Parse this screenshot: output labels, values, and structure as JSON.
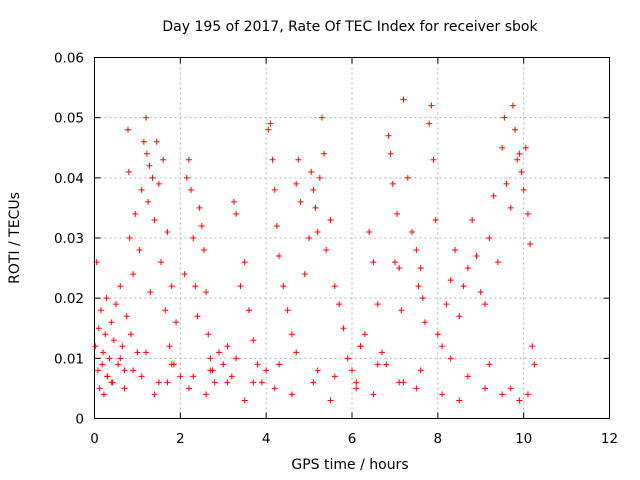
{
  "chart_data": {
    "type": "scatter",
    "title": "Day 195 of 2017, Rate Of TEC Index for receiver sbok",
    "xlabel": "GPS time / hours",
    "ylabel": "ROTI / TECUs",
    "xlim": [
      0,
      12
    ],
    "ylim": [
      0,
      0.06
    ],
    "x_ticks": [
      "0",
      "2",
      "4",
      "6",
      "8",
      "10",
      "12"
    ],
    "y_ticks": [
      "0",
      "0.01",
      "0.02",
      "0.03",
      "0.04",
      "0.05",
      "0.06"
    ],
    "grid": true,
    "marker": "+",
    "color": "#ff0000",
    "series": [
      {
        "x": [
          0.02,
          0.05,
          0.08,
          0.1,
          0.12,
          0.15,
          0.18,
          0.2,
          0.22,
          0.25,
          0.28,
          0.3,
          0.35,
          0.4,
          0.42,
          0.45,
          0.5,
          0.55,
          0.6,
          0.65,
          0.7,
          0.75,
          0.78,
          0.8,
          0.82,
          0.85,
          0.9,
          0.95,
          1.0,
          1.05,
          1.1,
          1.15,
          1.2,
          1.22,
          1.25,
          1.28,
          1.3,
          1.35,
          1.4,
          1.45,
          1.5,
          1.55,
          1.6,
          1.65,
          1.7,
          1.75,
          1.8,
          1.85,
          1.9,
          2.0,
          2.1,
          2.15,
          2.2,
          2.25,
          2.3,
          2.35,
          2.4,
          2.45,
          2.5,
          2.55,
          2.6,
          2.65,
          2.7,
          2.75,
          2.8,
          2.9,
          3.0,
          3.1,
          3.2,
          3.25,
          3.3,
          3.4,
          3.5,
          3.6,
          3.7,
          3.8,
          3.9,
          4.0,
          4.05,
          4.1,
          4.15,
          4.2,
          4.25,
          4.3,
          4.4,
          4.5,
          4.6,
          4.7,
          4.75,
          4.8,
          4.9,
          5.0,
          5.05,
          5.1,
          5.15,
          5.2,
          5.25,
          5.3,
          5.35,
          5.4,
          5.5,
          5.6,
          5.7,
          5.8,
          5.9,
          6.0,
          6.1,
          6.2,
          6.3,
          6.4,
          6.5,
          6.6,
          6.7,
          6.8,
          6.85,
          6.9,
          6.95,
          7.0,
          7.05,
          7.1,
          7.15,
          7.2,
          7.3,
          7.4,
          7.5,
          7.55,
          7.6,
          7.65,
          7.7,
          7.8,
          7.85,
          7.9,
          7.95,
          8.0,
          8.1,
          8.2,
          8.3,
          8.4,
          8.5,
          8.6,
          8.7,
          8.8,
          8.9,
          9.0,
          9.1,
          9.2,
          9.3,
          9.4,
          9.5,
          9.55,
          9.6,
          9.7,
          9.75,
          9.8,
          9.85,
          9.9,
          9.95,
          10.0,
          10.05,
          10.1,
          10.15,
          10.2,
          10.25,
          0.3,
          0.6,
          0.9,
          1.2,
          1.5,
          1.8,
          2.3,
          2.7,
          3.3,
          3.7,
          4.3,
          4.7,
          5.2,
          5.6,
          6.2,
          6.6,
          7.2,
          7.6,
          8.3,
          8.7,
          9.2,
          9.7,
          10.1,
          0.4,
          0.7,
          1.1,
          1.4,
          1.7,
          2.2,
          2.6,
          3.1,
          3.5,
          4.2,
          4.6,
          5.1,
          5.5,
          6.1,
          6.5,
          7.1,
          7.5,
          8.1,
          8.5,
          9.1,
          9.5,
          9.9
        ],
        "y": [
          0.012,
          0.026,
          0.008,
          0.015,
          0.005,
          0.018,
          0.009,
          0.011,
          0.004,
          0.014,
          0.02,
          0.007,
          0.01,
          0.016,
          0.006,
          0.013,
          0.019,
          0.009,
          0.022,
          0.012,
          0.008,
          0.017,
          0.048,
          0.041,
          0.03,
          0.014,
          0.024,
          0.034,
          0.011,
          0.028,
          0.038,
          0.046,
          0.05,
          0.044,
          0.036,
          0.042,
          0.021,
          0.04,
          0.033,
          0.046,
          0.039,
          0.026,
          0.043,
          0.018,
          0.031,
          0.012,
          0.022,
          0.009,
          0.016,
          0.007,
          0.024,
          0.04,
          0.043,
          0.038,
          0.03,
          0.022,
          0.017,
          0.035,
          0.032,
          0.028,
          0.021,
          0.014,
          0.01,
          0.008,
          0.006,
          0.011,
          0.009,
          0.012,
          0.007,
          0.036,
          0.034,
          0.022,
          0.026,
          0.018,
          0.013,
          0.009,
          0.006,
          0.008,
          0.048,
          0.049,
          0.043,
          0.038,
          0.032,
          0.027,
          0.022,
          0.018,
          0.014,
          0.039,
          0.043,
          0.036,
          0.024,
          0.03,
          0.041,
          0.038,
          0.035,
          0.031,
          0.04,
          0.05,
          0.044,
          0.028,
          0.033,
          0.022,
          0.019,
          0.015,
          0.01,
          0.008,
          0.006,
          0.012,
          0.014,
          0.031,
          0.026,
          0.019,
          0.011,
          0.009,
          0.047,
          0.044,
          0.039,
          0.026,
          0.034,
          0.025,
          0.018,
          0.053,
          0.04,
          0.031,
          0.028,
          0.022,
          0.025,
          0.02,
          0.016,
          0.049,
          0.052,
          0.043,
          0.033,
          0.014,
          0.012,
          0.019,
          0.023,
          0.028,
          0.017,
          0.022,
          0.025,
          0.033,
          0.027,
          0.021,
          0.019,
          0.03,
          0.037,
          0.026,
          0.045,
          0.05,
          0.039,
          0.035,
          0.052,
          0.048,
          0.043,
          0.044,
          0.041,
          0.038,
          0.045,
          0.034,
          0.029,
          0.012,
          0.009,
          0.007,
          0.01,
          0.008,
          0.011,
          0.006,
          0.009,
          0.007,
          0.008,
          0.01,
          0.006,
          0.009,
          0.011,
          0.008,
          0.007,
          0.012,
          0.009,
          0.006,
          0.008,
          0.01,
          0.007,
          0.009,
          0.005,
          0.004,
          0.006,
          0.005,
          0.007,
          0.004,
          0.006,
          0.005,
          0.004,
          0.006,
          0.003,
          0.005,
          0.004,
          0.006,
          0.003,
          0.005,
          0.004,
          0.006,
          0.005,
          0.004,
          0.003,
          0.005,
          0.004,
          0.003
        ]
      }
    ]
  }
}
